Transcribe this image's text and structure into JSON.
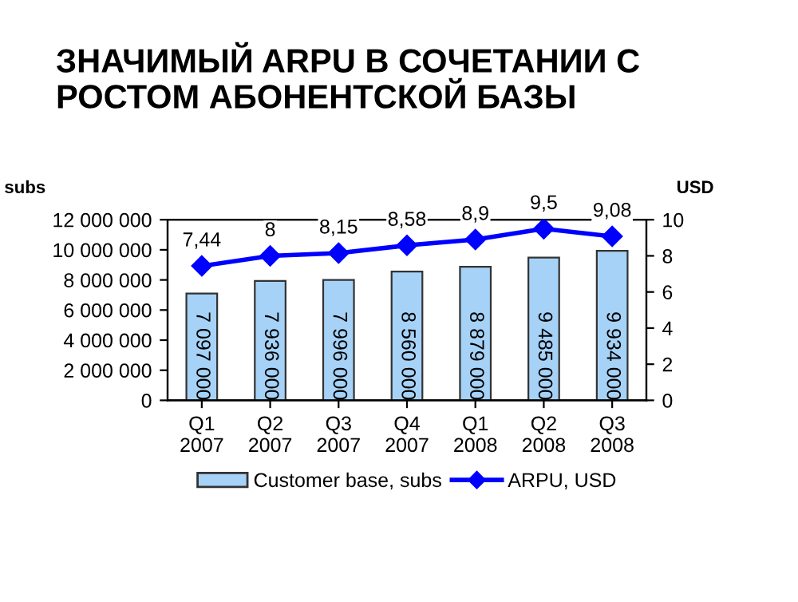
{
  "chart_data": {
    "type": "bar",
    "title": "ЗНАЧИМЫЙ ARPU В СОЧЕТАНИИ С\nРОСТОМ АБОНЕНТСКОЙ БАЗЫ",
    "ylabel": "subs",
    "y2label": "USD",
    "categories": [
      "Q1\n2007",
      "Q2\n2007",
      "Q3\n2007",
      "Q4\n2007",
      "Q1\n2008",
      "Q2\n2008",
      "Q3\n2008"
    ],
    "series": [
      {
        "name": "Customer base, subs",
        "color": "#a6d2f7",
        "values": [
          7097000,
          7936000,
          7996000,
          8560000,
          8879000,
          9485000,
          9934000
        ],
        "value_labels": [
          "7 097 000",
          "7 936 000",
          "7 996 000",
          "8 560 000",
          "8 879 000",
          "9 485 000",
          "9 934 000"
        ]
      },
      {
        "name": "ARPU, USD",
        "type": "line",
        "axis": "y2",
        "color": "#0000ff",
        "marker": "diamond",
        "values": [
          7.44,
          8,
          8.15,
          8.58,
          8.9,
          9.5,
          9.08
        ],
        "value_labels": [
          "7,44",
          "8",
          "8,15",
          "8,58",
          "8,9",
          "9,5",
          "9,08"
        ]
      }
    ],
    "ylim": [
      0,
      12000000
    ],
    "yticks": [
      {
        "value": 0,
        "label": "0"
      },
      {
        "value": 2000000,
        "label": "2 000 000"
      },
      {
        "value": 4000000,
        "label": "4 000 000"
      },
      {
        "value": 6000000,
        "label": "6 000 000"
      },
      {
        "value": 8000000,
        "label": "8 000 000"
      },
      {
        "value": 10000000,
        "label": "10 000 000"
      },
      {
        "value": 12000000,
        "label": "12 000 000"
      }
    ],
    "y2lim": [
      0,
      10
    ],
    "y2ticks": [
      0,
      2,
      4,
      6,
      8,
      10
    ],
    "legend": "bottom",
    "grid": false
  }
}
